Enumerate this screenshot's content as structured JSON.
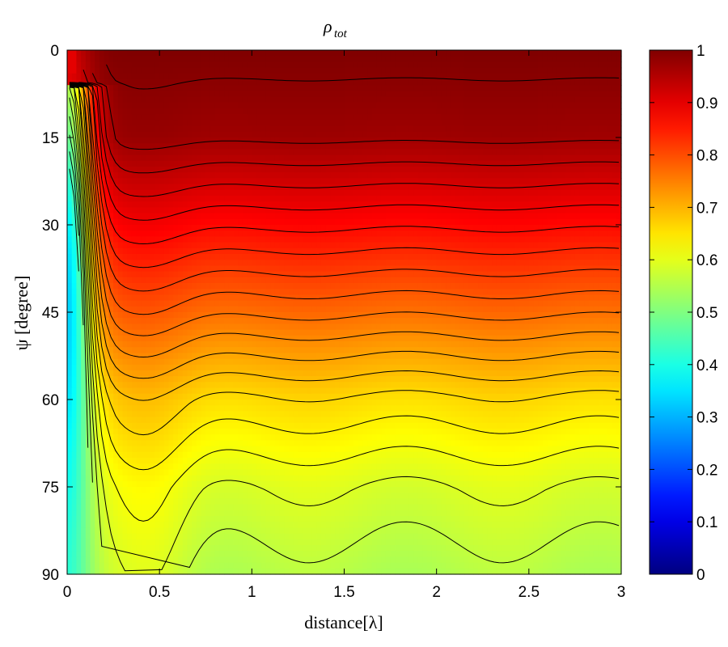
{
  "chart_data": [
    {
      "type": "heatmap",
      "title_symbol": "ρ",
      "title_subscript": "tot",
      "xlabel": "distance[λ]",
      "ylabel": "ψ [degree]",
      "xlim": [
        0,
        3
      ],
      "ylim": [
        0,
        90
      ],
      "y_axis_direction": "top-to-bottom",
      "x_ticks": [
        "0",
        "0.5",
        "1",
        "1.5",
        "2",
        "2.5",
        "3"
      ],
      "y_ticks": [
        "0",
        "15",
        "30",
        "45",
        "60",
        "75",
        "90"
      ],
      "colormap": "jet",
      "color_range": [
        0,
        1
      ],
      "contour_lines": true,
      "contour_color": "#000000",
      "colorbar": {
        "ticks": [
          "0",
          "0.1",
          "0.2",
          "0.3",
          "0.4",
          "0.5",
          "0.6",
          "0.7",
          "0.8",
          "0.9",
          "1"
        ],
        "range": [
          0,
          1
        ],
        "placement": "right"
      },
      "value_profile_far_field": [
        {
          "psi": 0,
          "value": 1.0
        },
        {
          "psi": 15,
          "value": 0.97
        },
        {
          "psi": 30,
          "value": 0.87
        },
        {
          "psi": 45,
          "value": 0.77
        },
        {
          "psi": 60,
          "value": 0.66
        },
        {
          "psi": 75,
          "value": 0.59
        },
        {
          "psi": 90,
          "value": 0.55
        }
      ],
      "near_field_minimum": {
        "distance": 0.02,
        "psi": 45,
        "value": 0.33
      }
    }
  ]
}
